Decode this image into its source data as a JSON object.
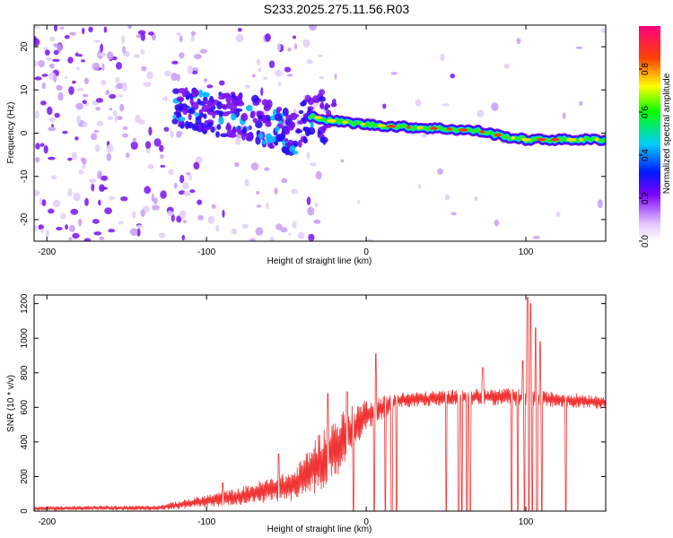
{
  "title": "S233.2025.275.11.56.R03",
  "chart_data": [
    {
      "type": "heatmap",
      "xlabel": "Height of straight line (km)",
      "ylabel": "Frequency (Hz)",
      "xlim": [
        -208,
        150
      ],
      "ylim": [
        -25,
        25
      ],
      "x_ticks": [
        -200,
        -100,
        0,
        100
      ],
      "y_ticks": [
        -20,
        -10,
        0,
        10,
        20
      ],
      "colorbar": {
        "label": "Normalized spectral amplitude",
        "range": [
          0,
          1
        ],
        "ticks": [
          "0.0",
          "0.2",
          "0.4",
          "0.6",
          "0.8"
        ]
      },
      "ridge_frequency": [
        {
          "x": -120,
          "y": 6
        },
        {
          "x": -100,
          "y": 5
        },
        {
          "x": -80,
          "y": 4
        },
        {
          "x": -60,
          "y": 2
        },
        {
          "x": -45,
          "y": 0
        },
        {
          "x": -33,
          "y": 4
        },
        {
          "x": -25,
          "y": 3
        },
        {
          "x": 0,
          "y": 2
        },
        {
          "x": 20,
          "y": 1.5
        },
        {
          "x": 50,
          "y": 1
        },
        {
          "x": 70,
          "y": 0.5
        },
        {
          "x": 90,
          "y": -1
        },
        {
          "x": 100,
          "y": -1.5
        },
        {
          "x": 125,
          "y": -1.5
        },
        {
          "x": 150,
          "y": -1.5
        }
      ]
    },
    {
      "type": "line",
      "xlabel": "Height of straight line (km)",
      "ylabel": "SNR (10 * v/v)",
      "xlim": [
        -208,
        150
      ],
      "ylim": [
        0,
        1250
      ],
      "x_ticks": [
        -200,
        -100,
        0,
        100
      ],
      "y_ticks": [
        0,
        200,
        400,
        600,
        800,
        1000,
        1200
      ],
      "color": "#f03434",
      "envelope": [
        {
          "x": -208,
          "mean": 15,
          "amp": 12
        },
        {
          "x": -130,
          "mean": 20,
          "amp": 15
        },
        {
          "x": -110,
          "mean": 45,
          "amp": 30
        },
        {
          "x": -80,
          "mean": 85,
          "amp": 50
        },
        {
          "x": -45,
          "mean": 150,
          "amp": 90
        },
        {
          "x": -30,
          "mean": 280,
          "amp": 170
        },
        {
          "x": -15,
          "mean": 400,
          "amp": 180
        },
        {
          "x": 0,
          "mean": 560,
          "amp": 90
        },
        {
          "x": 20,
          "mean": 640,
          "amp": 45
        },
        {
          "x": 60,
          "mean": 660,
          "amp": 45
        },
        {
          "x": 90,
          "mean": 660,
          "amp": 50
        },
        {
          "x": 110,
          "mean": 650,
          "amp": 45
        },
        {
          "x": 150,
          "mean": 630,
          "amp": 40
        }
      ],
      "spikes": [
        {
          "x": -90,
          "y": 165
        },
        {
          "x": -55,
          "y": 330
        },
        {
          "x": -24,
          "y": 680
        },
        {
          "x": -12,
          "y": 690
        },
        {
          "x": 6,
          "y": 910
        },
        {
          "x": 73,
          "y": 830
        },
        {
          "x": 98,
          "y": 870
        },
        {
          "x": 101,
          "y": 1235
        },
        {
          "x": 103,
          "y": 1200
        },
        {
          "x": 106,
          "y": 1060
        },
        {
          "x": 109,
          "y": 980
        }
      ],
      "dropouts": [
        -8,
        5,
        12,
        16,
        19,
        50,
        58,
        60,
        63,
        65,
        91,
        95,
        99,
        102,
        104,
        107,
        110,
        125
      ]
    }
  ]
}
